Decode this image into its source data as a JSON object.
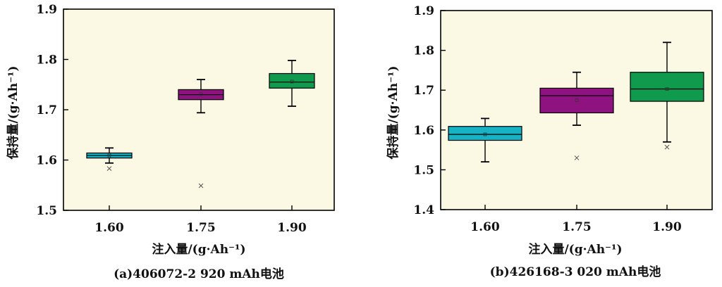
{
  "chart_data": [
    {
      "type": "box",
      "caption": "(a)406072-2 920 mAh电池",
      "xlabel": "注入量/(g·Ah⁻¹)",
      "ylabel": "保持量/(g·Ah⁻¹)",
      "categories": [
        "1.60",
        "1.75",
        "1.90"
      ],
      "ylim": [
        1.5,
        1.9
      ],
      "yticks": [
        "1.5",
        "1.6",
        "1.7",
        "1.8",
        "1.9"
      ],
      "ytick_values": [
        1.5,
        1.6,
        1.7,
        1.8,
        1.9
      ],
      "boxes": [
        {
          "min": 1.594,
          "q1": 1.604,
          "median": 1.609,
          "q3": 1.614,
          "max": 1.624,
          "mean": 1.609,
          "outliers": [
            1.583
          ]
        },
        {
          "min": 1.694,
          "q1": 1.72,
          "median": 1.73,
          "q3": 1.74,
          "max": 1.76,
          "mean": 1.731,
          "outliers": [
            1.549
          ]
        },
        {
          "min": 1.707,
          "q1": 1.743,
          "median": 1.755,
          "q3": 1.772,
          "max": 1.798,
          "mean": 1.756,
          "outliers": []
        }
      ],
      "colors": [
        "#17b3c4",
        "#8e1380",
        "#0f9a4e"
      ]
    },
    {
      "type": "box",
      "caption": "(b)426168-3 020 mAh电池",
      "xlabel": "注入量/(g·Ah⁻¹)",
      "ylabel": "保持量/(g·Ah⁻¹)",
      "categories": [
        "1.60",
        "1.75",
        "1.90"
      ],
      "ylim": [
        1.4,
        1.9
      ],
      "yticks": [
        "1.4",
        "1.5",
        "1.6",
        "1.7",
        "1.8",
        "1.9"
      ],
      "ytick_values": [
        1.4,
        1.5,
        1.6,
        1.7,
        1.8,
        1.9
      ],
      "boxes": [
        {
          "min": 1.52,
          "q1": 1.574,
          "median": 1.589,
          "q3": 1.609,
          "max": 1.629,
          "mean": 1.589,
          "outliers": []
        },
        {
          "min": 1.612,
          "q1": 1.643,
          "median": 1.686,
          "q3": 1.705,
          "max": 1.745,
          "mean": 1.675,
          "outliers": [
            1.53
          ]
        },
        {
          "min": 1.57,
          "q1": 1.672,
          "median": 1.703,
          "q3": 1.745,
          "max": 1.82,
          "mean": 1.703,
          "outliers": [
            1.557
          ]
        }
      ],
      "colors": [
        "#17b3c4",
        "#8e1380",
        "#0f9a4e"
      ]
    }
  ],
  "plot_background": "#fbf8e4"
}
